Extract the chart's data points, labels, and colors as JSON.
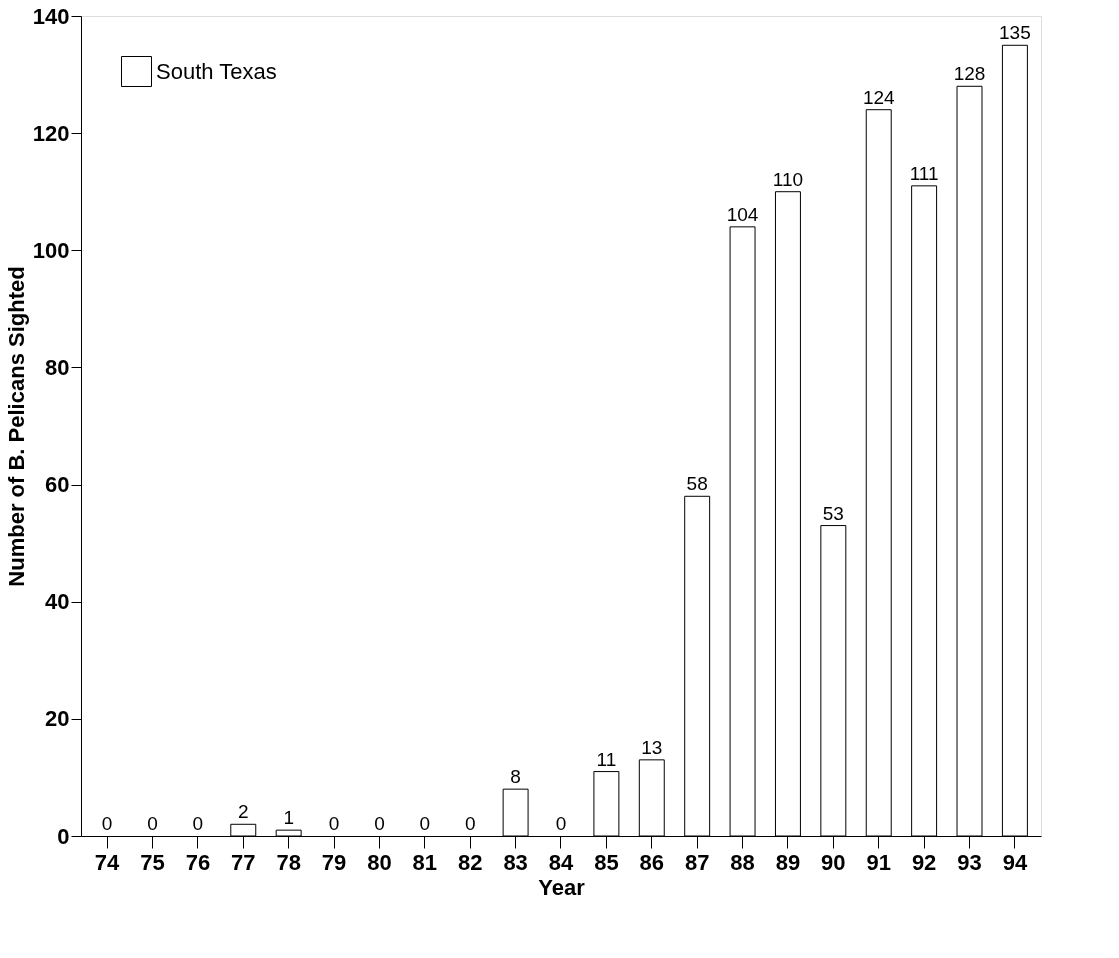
{
  "chart_data": {
    "type": "bar",
    "xlabel": "Year",
    "ylabel": "Number of B. Pelicans Sighted",
    "categories": [
      "74",
      "75",
      "76",
      "77",
      "78",
      "79",
      "80",
      "81",
      "82",
      "83",
      "84",
      "85",
      "86",
      "87",
      "88",
      "89",
      "90",
      "91",
      "92",
      "93",
      "94"
    ],
    "series": [
      {
        "name": "South Texas",
        "color": "#ffffff",
        "values": [
          0,
          0,
          0,
          2,
          1,
          0,
          0,
          0,
          0,
          8,
          0,
          11,
          13,
          58,
          104,
          110,
          53,
          124,
          111,
          128,
          135
        ]
      }
    ],
    "ylim": [
      0,
      140
    ],
    "yticks": [
      0,
      20,
      40,
      60,
      80,
      100,
      120,
      140
    ],
    "grid": false,
    "legend": "top left",
    "data_labels": true
  }
}
